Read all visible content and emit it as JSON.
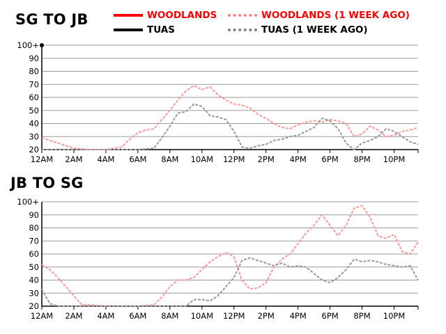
{
  "legend": {
    "woodlands": {
      "label": "WOODLANDS",
      "color": "#ff0000"
    },
    "woodlands_week": {
      "label": "WOODLANDS (1 WEEK AGO)",
      "color": "#ff8080"
    },
    "tuas": {
      "label": "TUAS",
      "color": "#000000"
    },
    "tuas_week": {
      "label": "TUAS (1 WEEK AGO)",
      "color": "#808080"
    }
  },
  "chart_data": [
    {
      "type": "line",
      "title": "SG TO JB",
      "x_ticks": [
        "12AM",
        "2AM",
        "4AM",
        "6AM",
        "8AM",
        "10AM",
        "12PM",
        "2PM",
        "4PM",
        "6PM",
        "8PM",
        "10PM"
      ],
      "y_ticks": [
        "20",
        "30",
        "40",
        "50",
        "60",
        "70",
        "80",
        "90",
        "100+"
      ],
      "ylim": [
        20,
        100
      ],
      "x_hours": [
        0,
        23.5
      ],
      "grid": true,
      "series": [
        {
          "name": "WOODLANDS (1 WEEK AGO)",
          "style": "dashed",
          "color": "#ff9999",
          "x": [
            0,
            1,
            2,
            3,
            4,
            5,
            5.5,
            6,
            6.5,
            7,
            7.5,
            8,
            8.5,
            9,
            9.5,
            10,
            10.5,
            11,
            11.5,
            12,
            12.5,
            13,
            13.5,
            14,
            14.5,
            15,
            15.5,
            16,
            16.5,
            17,
            17.5,
            18,
            18.5,
            19,
            19.5,
            20,
            20.5,
            21,
            21.5,
            22,
            22.5,
            23,
            23.5
          ],
          "y": [
            29,
            25,
            21,
            20,
            20,
            22,
            28,
            33,
            35,
            36,
            43,
            50,
            58,
            65,
            69,
            66,
            68,
            62,
            58,
            55,
            54,
            52,
            47,
            44,
            40,
            37,
            36,
            39,
            41,
            42,
            41,
            43,
            42,
            40,
            30,
            32,
            38,
            35,
            30,
            31,
            34,
            35,
            37
          ]
        },
        {
          "name": "TUAS (1 WEEK AGO)",
          "style": "dashed",
          "color": "#999999",
          "x": [
            0,
            2,
            4,
            6,
            7,
            7.5,
            8,
            8.5,
            9,
            9.5,
            10,
            10.5,
            11,
            11.5,
            12,
            12.5,
            13,
            13.5,
            14,
            14.5,
            15,
            15.5,
            16,
            16.5,
            17,
            17.5,
            18,
            18.5,
            19,
            19.5,
            20,
            20.5,
            21,
            21.5,
            22,
            22.5,
            23,
            23.5
          ],
          "y": [
            20,
            20,
            20,
            20,
            21,
            29,
            38,
            48,
            49,
            55,
            53,
            46,
            45,
            43,
            34,
            22,
            21,
            23,
            24,
            27,
            28,
            30,
            31,
            34,
            37,
            44,
            42,
            36,
            25,
            20,
            25,
            27,
            30,
            36,
            34,
            30,
            26,
            24
          ]
        }
      ]
    },
    {
      "type": "line",
      "title": "JB TO SG",
      "x_ticks": [
        "12AM",
        "2AM",
        "4AM",
        "6AM",
        "8AM",
        "10AM",
        "12PM",
        "2PM",
        "4PM",
        "6PM",
        "8PM",
        "10PM"
      ],
      "y_ticks": [
        "20",
        "30",
        "40",
        "50",
        "60",
        "70",
        "80",
        "90",
        "100+"
      ],
      "ylim": [
        20,
        100
      ],
      "x_hours": [
        0,
        23.5
      ],
      "grid": true,
      "series": [
        {
          "name": "WOODLANDS (1 WEEK AGO)",
          "style": "dashed",
          "color": "#ff9999",
          "x": [
            0,
            0.5,
            1,
            1.5,
            2,
            2.5,
            3,
            4,
            5,
            6,
            7,
            7.5,
            8,
            8.5,
            9,
            9.5,
            10,
            10.5,
            11,
            11.5,
            12,
            12.5,
            13,
            13.5,
            14,
            14.5,
            15,
            15.5,
            16,
            16.5,
            17,
            17.5,
            18,
            18.5,
            19,
            19.5,
            20,
            20.5,
            21,
            21.5,
            22,
            22.5,
            23,
            23.5
          ],
          "y": [
            52,
            48,
            42,
            35,
            28,
            21,
            21,
            20,
            20,
            20,
            21,
            27,
            35,
            40,
            40,
            42,
            48,
            54,
            58,
            61,
            58,
            40,
            33,
            34,
            38,
            50,
            56,
            60,
            68,
            76,
            82,
            90,
            82,
            74,
            82,
            95,
            97,
            88,
            74,
            72,
            75,
            62,
            60,
            69
          ]
        },
        {
          "name": "TUAS (1 WEEK AGO)",
          "style": "dashed",
          "color": "#999999",
          "x": [
            0,
            0.5,
            1,
            2,
            3,
            4,
            5,
            6,
            7,
            8,
            9,
            9.5,
            10,
            10.5,
            11,
            11.5,
            12,
            12.5,
            13,
            13.5,
            14,
            14.5,
            15,
            15.5,
            16,
            16.5,
            17,
            17.5,
            18,
            18.5,
            19,
            19.5,
            20,
            20.5,
            21,
            21.5,
            22,
            22.5,
            23,
            23.5
          ],
          "y": [
            33,
            22,
            20,
            20,
            20,
            20,
            20,
            20,
            20,
            20,
            20,
            25,
            25,
            24,
            28,
            35,
            42,
            55,
            57,
            55,
            53,
            51,
            53,
            50,
            51,
            50,
            45,
            40,
            38,
            42,
            48,
            56,
            54,
            55,
            54,
            52,
            51,
            50,
            51,
            40
          ]
        }
      ]
    }
  ]
}
